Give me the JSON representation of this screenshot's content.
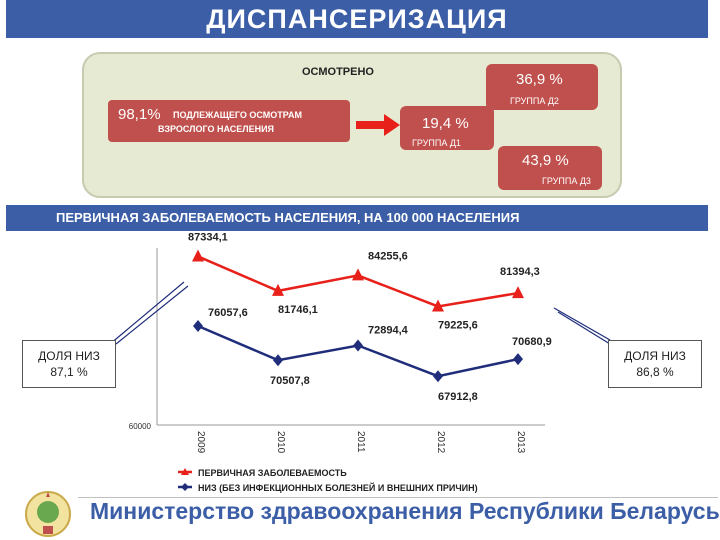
{
  "header": {
    "title": "ДИСПАНСЕРИЗАЦИЯ"
  },
  "examined": {
    "label": "ОСМОТРЕНО",
    "percent": "98,1%",
    "desc_line1": "ПОДЛЕЖАЩЕГО ОСМОТРАМ",
    "desc_line2": "ВЗРОСЛОГО НАСЕЛЕНИЯ"
  },
  "groups": [
    {
      "value": "36,9 %",
      "label": "ГРУППА  Д2"
    },
    {
      "value": "19,4 %",
      "label": "ГРУППА  Д1"
    },
    {
      "value": "43,9 %",
      "label": "ГРУППА  Д3"
    }
  ],
  "section": {
    "title": "ПЕРВИЧНАЯ ЗАБОЛЕВАЕМОСТЬ НАСЕЛЕНИЯ, НА 100 000 НАСЕЛЕНИЯ"
  },
  "share_left": {
    "line1": "ДОЛЯ НИЗ",
    "line2": "87,1 %"
  },
  "share_right": {
    "line1": "ДОЛЯ НИЗ",
    "line2": "86,8 %"
  },
  "chart_data": {
    "type": "line",
    "x": [
      "2009",
      "2010",
      "2011",
      "2012",
      "2013"
    ],
    "series": [
      {
        "name": "ПЕРВИЧНАЯ ЗАБОЛЕВАЕМОСТЬ",
        "values": [
          87334.1,
          81746.1,
          84255.6,
          79225.6,
          81394.3
        ],
        "labels": [
          "87334,1",
          "81746,1",
          "84255,6",
          "79225,6",
          "81394,3"
        ],
        "color": "#e8201a",
        "marker": "triangle"
      },
      {
        "name": "НИЗ (БЕЗ ИНФЕКЦИОННЫХ БОЛЕЗНЕЙ И ВНЕШНИХ ПРИЧИН)",
        "values": [
          76057.6,
          70507.8,
          72894.4,
          67912.8,
          70680.9
        ],
        "labels": [
          "76057,6",
          "70507,8",
          "72894,4",
          "67912,8",
          "70680,9"
        ],
        "color": "#1f2d7a",
        "marker": "diamond"
      }
    ],
    "y_tick_label": "60000",
    "ylim": [
      60000,
      90000
    ],
    "grid": false,
    "legend_position": "bottom"
  },
  "footer": {
    "ministry": "Министерство здравоохранения Республики Беларусь"
  },
  "colors": {
    "brand_blue": "#3b5ea7",
    "box_red": "#c0504d",
    "panel": "#e7ead2"
  }
}
